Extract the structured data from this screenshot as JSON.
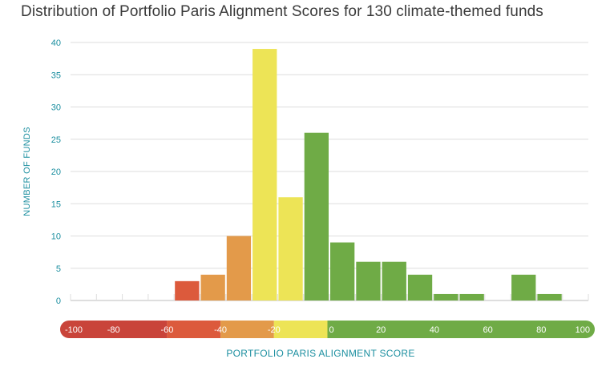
{
  "chart_data": {
    "type": "bar",
    "title": "Distribution of Portfolio Paris Alignment Scores for 130 climate-themed funds",
    "xlabel": "PORTFOLIO PARIS ALIGNMENT SCORE",
    "ylabel": "NUMBER OF FUNDS",
    "ylim": [
      0,
      40
    ],
    "yticks": [
      0,
      5,
      10,
      15,
      20,
      25,
      30,
      35,
      40
    ],
    "xlim": [
      -100,
      100
    ],
    "bin_width": 10,
    "grid": true,
    "bins": [
      {
        "x0": -100,
        "x1": -90,
        "value": 0,
        "color": "#dc5a3c"
      },
      {
        "x0": -90,
        "x1": -80,
        "value": 0,
        "color": "#dc5a3c"
      },
      {
        "x0": -80,
        "x1": -70,
        "value": 0,
        "color": "#dc5a3c"
      },
      {
        "x0": -70,
        "x1": -60,
        "value": 0,
        "color": "#dc5a3c"
      },
      {
        "x0": -60,
        "x1": -50,
        "value": 3,
        "color": "#dc5a3c"
      },
      {
        "x0": -50,
        "x1": -40,
        "value": 4,
        "color": "#e39a4a"
      },
      {
        "x0": -40,
        "x1": -30,
        "value": 10,
        "color": "#e39a4a"
      },
      {
        "x0": -30,
        "x1": -20,
        "value": 39,
        "color": "#ede456"
      },
      {
        "x0": -20,
        "x1": -10,
        "value": 16,
        "color": "#ede456"
      },
      {
        "x0": -10,
        "x1": 0,
        "value": 26,
        "color": "#6fab46"
      },
      {
        "x0": 0,
        "x1": 10,
        "value": 9,
        "color": "#6fab46"
      },
      {
        "x0": 10,
        "x1": 20,
        "value": 6,
        "color": "#6fab46"
      },
      {
        "x0": 20,
        "x1": 30,
        "value": 6,
        "color": "#6fab46"
      },
      {
        "x0": 30,
        "x1": 40,
        "value": 4,
        "color": "#6fab46"
      },
      {
        "x0": 40,
        "x1": 50,
        "value": 1,
        "color": "#6fab46"
      },
      {
        "x0": 50,
        "x1": 60,
        "value": 1,
        "color": "#6fab46"
      },
      {
        "x0": 60,
        "x1": 70,
        "value": 0,
        "color": "#6fab46"
      },
      {
        "x0": 70,
        "x1": 80,
        "value": 4,
        "color": "#6fab46"
      },
      {
        "x0": 80,
        "x1": 90,
        "value": 1,
        "color": "#6fab46"
      }
    ],
    "color_scale": {
      "segments": [
        {
          "from": -100,
          "to": -60,
          "color": "#c9443a"
        },
        {
          "from": -60,
          "to": -40,
          "color": "#dc5a3c"
        },
        {
          "from": -40,
          "to": -20,
          "color": "#e39a4a"
        },
        {
          "from": -20,
          "to": 0,
          "color": "#ede456"
        },
        {
          "from": 0,
          "to": 100,
          "color": "#6fab46"
        }
      ],
      "labels": [
        "-100",
        "-80",
        "-60",
        "-40",
        "-20",
        "0",
        "20",
        "40",
        "60",
        "80",
        "100"
      ]
    }
  }
}
